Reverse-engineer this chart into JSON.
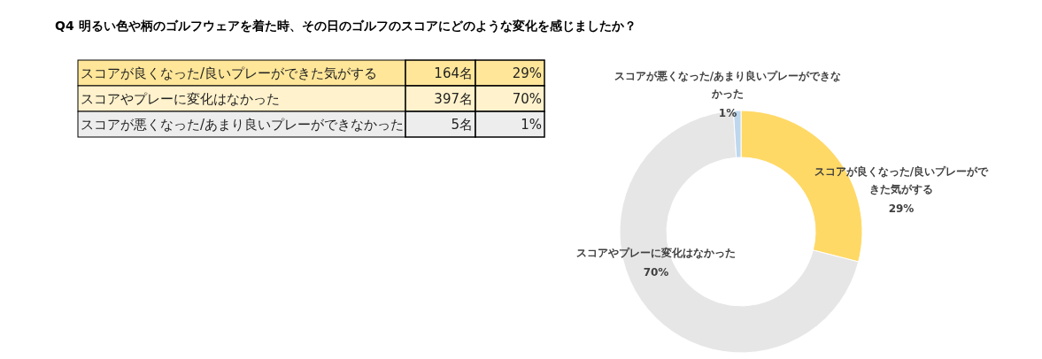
{
  "chart_data": {
    "type": "donut",
    "title": "Q4 明るい色や柄のゴルフウェアを着た時、その日のゴルフのスコアにどのような変化を感じましたか？",
    "categories": [
      "スコアが良くなった/良いプレーができた気がする",
      "スコアやプレーに変化はなかった",
      "スコアが悪くなった/あまり良いプレーができなかった"
    ],
    "values": [
      29,
      70,
      1
    ],
    "colors": [
      "#ffd966",
      "#e7e6e6",
      "#bdd7ee"
    ],
    "value_labels": [
      "29%",
      "70%",
      "1%"
    ],
    "annotations": [
      "164名",
      "397名",
      "5名"
    ]
  }
}
